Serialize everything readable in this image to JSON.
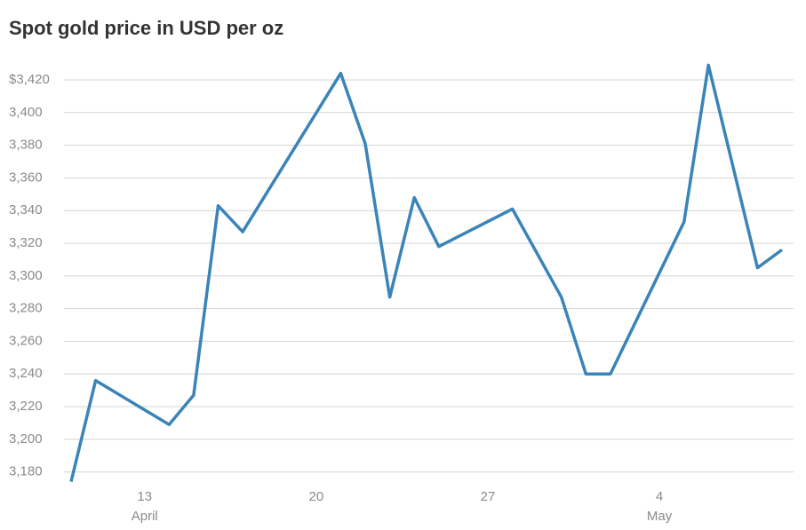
{
  "chart_data": {
    "type": "line",
    "title": "Spot gold price in USD per oz",
    "x": [
      "April 10",
      "April 11",
      "April 14",
      "April 15",
      "April 16",
      "April 17",
      "April 21",
      "April 22",
      "April 23",
      "April 24",
      "April 25",
      "April 28",
      "April 30",
      "May 1",
      "May 2",
      "May 5",
      "May 6",
      "May 8",
      "May 9"
    ],
    "series": [
      {
        "name": "Spot gold",
        "color": "#3a84b8",
        "values": [
          3174,
          3236,
          3209,
          3227,
          3343,
          3327,
          3424,
          3381,
          3287,
          3348,
          3318,
          3341,
          3287,
          3240,
          3240,
          3333,
          3429,
          3305,
          3316
        ]
      }
    ],
    "xlim": [
      "April 10",
      "May 9"
    ],
    "xticks": [
      {
        "value": "April 13",
        "label": "13"
      },
      {
        "value": "April 20",
        "label": "20"
      },
      {
        "value": "April 27",
        "label": "27"
      },
      {
        "value": "May 4",
        "label": "4"
      }
    ],
    "x_months": [
      {
        "value": "April 13",
        "label": "April"
      },
      {
        "value": "May 4",
        "label": "May"
      }
    ],
    "ylim": [
      3170,
      3430
    ],
    "yticks": [
      3180,
      3200,
      3220,
      3240,
      3260,
      3280,
      3300,
      3320,
      3340,
      3360,
      3380,
      3400,
      {
        "value": 3420,
        "label": "$3,420"
      }
    ],
    "ytick_labels": [
      "3,180",
      "3,200",
      "3,220",
      "3,240",
      "3,260",
      "3,280",
      "3,300",
      "3,320",
      "3,340",
      "3,360",
      "3,380",
      "3,400"
    ],
    "grid": true
  }
}
